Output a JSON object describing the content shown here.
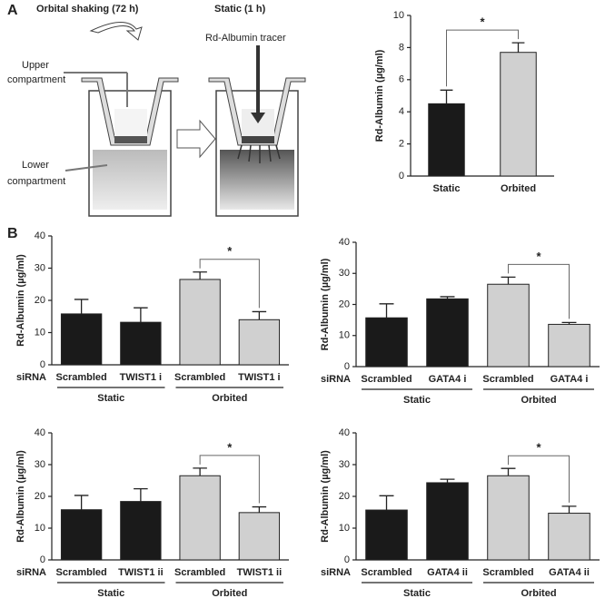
{
  "panel_labels": [
    "A",
    "B"
  ],
  "diagram": {
    "left_title": "Orbital shaking (72 h)",
    "right_title": "Static (1 h)",
    "tracer_label": "Rd-Albumin tracer",
    "upper_label": [
      "Upper",
      "compartment"
    ],
    "lower_label": [
      "Lower",
      "compartment"
    ]
  },
  "chart_data": [
    {
      "type": "bar",
      "y_label": "Rd-Albumin (µg/ml)",
      "categories": [
        "Static",
        "Orbited"
      ],
      "values": [
        4.5,
        7.7
      ],
      "errors": [
        0.85,
        0.6
      ],
      "colors": [
        "#1a1a1a",
        "#d0d0d0"
      ],
      "ylim": [
        0,
        10
      ],
      "yticks": [
        0,
        2,
        4,
        6,
        8,
        10
      ],
      "annotation": "*"
    },
    {
      "type": "bar",
      "y_label": "Rd-Albumin (µg/ml)",
      "category_axis_label": "siRNA",
      "categories": [
        "Scrambled",
        "TWIST1 i",
        "Scrambled",
        "TWIST1 i"
      ],
      "group_labels": [
        "Static",
        "Orbited"
      ],
      "values": [
        15.8,
        13.2,
        26.5,
        14
      ],
      "errors": [
        4.5,
        4.5,
        2.3,
        2.5
      ],
      "colors": [
        "#1a1a1a",
        "#1a1a1a",
        "#d0d0d0",
        "#d0d0d0"
      ],
      "ylim": [
        0,
        40
      ],
      "yticks": [
        0,
        10,
        20,
        30,
        40
      ],
      "annotation": "*"
    },
    {
      "type": "bar",
      "y_label": "Rd-Albumin (µg/ml)",
      "category_axis_label": "siRNA",
      "categories": [
        "Scrambled",
        "GATA4 i",
        "Scrambled",
        "GATA4 i"
      ],
      "group_labels": [
        "Static",
        "Orbited"
      ],
      "values": [
        15.7,
        21.8,
        26.5,
        13.6
      ],
      "errors": [
        4.5,
        0.7,
        2.3,
        0.6
      ],
      "colors": [
        "#1a1a1a",
        "#1a1a1a",
        "#d0d0d0",
        "#d0d0d0"
      ],
      "ylim": [
        0,
        40
      ],
      "yticks": [
        0,
        10,
        20,
        30,
        40
      ],
      "annotation": "*"
    },
    {
      "type": "bar",
      "y_label": "Rd-Albumin (µg/ml)",
      "category_axis_label": "siRNA",
      "categories": [
        "Scrambled",
        "TWIST1 ii",
        "Scrambled",
        "TWIST1 ii"
      ],
      "group_labels": [
        "Static",
        "Orbited"
      ],
      "values": [
        15.8,
        18.4,
        26.5,
        14.9
      ],
      "errors": [
        4.5,
        4,
        2.4,
        1.8
      ],
      "colors": [
        "#1a1a1a",
        "#1a1a1a",
        "#d0d0d0",
        "#d0d0d0"
      ],
      "ylim": [
        0,
        40
      ],
      "yticks": [
        0,
        10,
        20,
        30,
        40
      ],
      "annotation": "*"
    },
    {
      "type": "bar",
      "y_label": "Rd-Albumin (µg/ml)",
      "category_axis_label": "siRNA",
      "categories": [
        "Scrambled",
        "GATA4 ii",
        "Scrambled",
        "GATA4 ii"
      ],
      "group_labels": [
        "Static",
        "Orbited"
      ],
      "values": [
        15.7,
        24.3,
        26.5,
        14.7
      ],
      "errors": [
        4.5,
        1.1,
        2.3,
        2.2
      ],
      "colors": [
        "#1a1a1a",
        "#1a1a1a",
        "#d0d0d0",
        "#d0d0d0"
      ],
      "ylim": [
        0,
        40
      ],
      "yticks": [
        0,
        10,
        20,
        30,
        40
      ],
      "annotation": "*"
    }
  ]
}
